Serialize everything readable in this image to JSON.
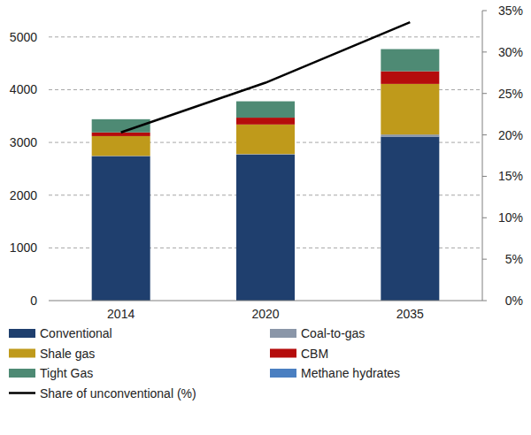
{
  "chart_data": {
    "type": "bar",
    "stacked": true,
    "grid": true,
    "legend": "bottom",
    "categories": [
      "2014",
      "2020",
      "2035"
    ],
    "ylim": [
      0,
      5500
    ],
    "yticks": [
      0,
      1000,
      2000,
      3000,
      4000,
      5000
    ],
    "y2lim": [
      0,
      35
    ],
    "y2ticks": [
      {
        "value": 0,
        "label": "0%"
      },
      {
        "value": 5,
        "label": "5%"
      },
      {
        "value": 10,
        "label": "10%"
      },
      {
        "value": 15,
        "label": "15%"
      },
      {
        "value": 20,
        "label": "20%"
      },
      {
        "value": 25,
        "label": "25%"
      },
      {
        "value": 30,
        "label": "30%"
      },
      {
        "value": 35,
        "label": "35%"
      }
    ],
    "series": [
      {
        "name": "Conventional",
        "color": "#1f3f6e",
        "values": [
          2740,
          2770,
          3110
        ]
      },
      {
        "name": "Coal-to-gas",
        "color": "#8a96a8",
        "values": [
          5,
          10,
          40
        ]
      },
      {
        "name": "Shale gas",
        "color": "#bf9a1b",
        "values": [
          375,
          560,
          960
        ]
      },
      {
        "name": "CBM",
        "color": "#b50c0c",
        "values": [
          70,
          130,
          240
        ]
      },
      {
        "name": "Tight Gas",
        "color": "#4e8a74",
        "values": [
          250,
          310,
          420
        ]
      },
      {
        "name": "Methane hydrates",
        "color": "#4a7fc1",
        "values": [
          0,
          0,
          0
        ]
      },
      {
        "name": "Share of unconventional (%)",
        "color": "#000000",
        "type": "line",
        "axis": "y2",
        "values": [
          20.3,
          26.3,
          33.6
        ]
      }
    ]
  }
}
